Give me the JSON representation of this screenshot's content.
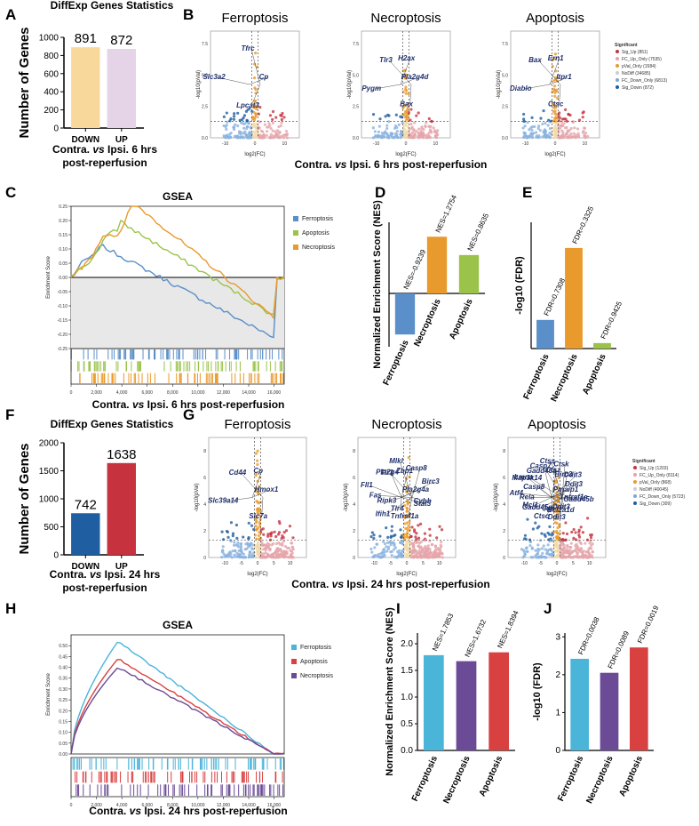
{
  "panels": {
    "A": "A",
    "B": "B",
    "C": "C",
    "D": "D",
    "E": "E",
    "F": "F",
    "G": "G",
    "H": "H",
    "I": "I",
    "J": "J"
  },
  "captions": {
    "a": [
      "Contra. vs Ipsi.  6 hrs",
      "post-reperfusion"
    ],
    "b": "Contra. vs Ipsi. 6 hrs post-reperfusion",
    "c": "Contra. vs Ipsi. 6 hrs post-reperfusion",
    "f": [
      "Contra. vs Ipsi.  24 hrs",
      "post-reperfusion"
    ],
    "g": "Contra. vs Ipsi. 24 hrs post-reperfusion",
    "h": "Contra. vs Ipsi. 24 hrs post-reperfusion"
  },
  "colors": {
    "ferroptosis": "#5b8fc9",
    "apoptosis": "#9bc34a",
    "necroptosis": "#e99a2c",
    "down6": "#f9d89c",
    "up6": "#e5d3e8",
    "down24": "#1f5ea0",
    "up24": "#c7323f",
    "ferro24": "#4ab4d9",
    "necro24": "#6b4a96",
    "apo24": "#d94141",
    "sigdown": "#5b8fc9",
    "sigup": "#d9707a"
  },
  "chart_data": [
    {
      "id": "A",
      "type": "bar",
      "title": "DiffExp Genes Statistics",
      "categories": [
        "DOWN",
        "UP"
      ],
      "values": [
        891,
        872
      ],
      "ylabel": "Number of Genes",
      "ylim": [
        0,
        1000
      ],
      "yticks": [
        "0",
        "200",
        "400",
        "600",
        "800",
        "1000"
      ]
    },
    {
      "id": "B",
      "type": "scatter",
      "subtitles": [
        "Ferroptosis",
        "Necroptosis",
        "Apoptosis"
      ],
      "xlabel": "log2(FC)",
      "ylabel": "-log10(pVal)",
      "yticks": [
        "0.0",
        "2.5",
        "5.0",
        "7.5"
      ],
      "xticks": [
        "-10",
        "0",
        "10"
      ],
      "genes": [
        [
          "Cp",
          "Lpcat3",
          "Slc3a2",
          "Tfrc"
        ],
        [
          "Pla2g4d",
          "Bax",
          "Pygm",
          "Tlr3",
          "H2ax"
        ],
        [
          "Itpr1",
          "Ctsc",
          "Diablo",
          "Bax",
          "Ern1"
        ]
      ],
      "legend_title": "Significant",
      "legend": [
        "Sig_Up (851)",
        "FC_Up_Only (7535)",
        "pVal_Only (1584)",
        "NoDiff (34685)",
        "FC_Down_Only (6813)",
        "Sig_Down (872)"
      ]
    },
    {
      "id": "C",
      "type": "line",
      "title": "GSEA",
      "ylabel": "Enrichment Score",
      "ylim": [
        -0.25,
        0.25
      ],
      "yticks": [
        "0.25",
        "0.20",
        "0.15",
        "0.10",
        "0.05",
        "0.00",
        "-0.05",
        "-0.10",
        "-0.15",
        "-0.20",
        "-0.25"
      ],
      "xticks": [
        "0",
        "2,000",
        "4,000",
        "6,000",
        "8,000",
        "10,000",
        "12,000",
        "14,000",
        "16,000"
      ],
      "series": [
        {
          "name": "Ferroptosis",
          "peak": 0.12
        },
        {
          "name": "Apoptosis",
          "peak": 0.2
        },
        {
          "name": "Necroptosis",
          "peak": 0.27
        }
      ]
    },
    {
      "id": "D",
      "type": "bar",
      "ylabel": "Normalized Enrichment Score (NES)",
      "categories": [
        "Ferroptosis",
        "Necroptosis",
        "Apoptosis"
      ],
      "values": [
        -0.9239,
        1.2754,
        0.8635
      ],
      "labels": [
        "NES=-0.9239",
        "NES=1.2754",
        "NES=0.8635"
      ]
    },
    {
      "id": "E",
      "type": "bar",
      "ylabel": "-log10 (FDR)",
      "categories": [
        "Ferroptosis",
        "Necroptosis",
        "Apoptosis"
      ],
      "values": [
        0.136,
        0.478,
        0.026
      ],
      "labels": [
        "FDR=0.7308",
        "FDR=0.3325",
        "FDR=0.9425"
      ]
    },
    {
      "id": "F",
      "type": "bar",
      "title": "DiffExp Genes Statistics",
      "categories": [
        "DOWN",
        "UP"
      ],
      "values": [
        742,
        1638
      ],
      "ylabel": "Number of Genes",
      "ylim": [
        0,
        2000
      ],
      "yticks": [
        "0",
        "500",
        "1000",
        "1500",
        "2000"
      ]
    },
    {
      "id": "G",
      "type": "scatter",
      "subtitles": [
        "Ferroptosis",
        "Necroptosis",
        "Apoptosis"
      ],
      "xlabel": "log2(FC)",
      "ylabel": "-log10(pVal)",
      "yticks": [
        "0",
        "2",
        "4",
        "6",
        "8"
      ],
      "xticks": [
        "-10",
        "-5",
        "0",
        "5",
        "10"
      ],
      "genes": [
        [
          "Hmox1",
          "Slc7a",
          "Slc39a14",
          "Cd44",
          "Cp"
        ],
        [
          "Pla2g4a",
          "Cybb",
          "Stat3",
          "Tnfrsf1a",
          "Tlr4",
          "Ifih1",
          "Ripk3",
          "Fas",
          "Fll1",
          "Tlr3",
          "Pla2g4",
          "Mlkl",
          "Zbp1",
          "Casp8",
          "Birc3"
        ],
        [
          "Pmaip1",
          "Tnfrsf1a",
          "Gadd45b",
          "Bcl2a1d",
          "Ddit3",
          "Ddit3",
          "Jun",
          "Ctsc",
          "Mcl1",
          "Gadd45g",
          "Rela",
          "Atf4",
          "Casp8",
          "Map3k14",
          "Lmna",
          "Casp7",
          "Gadd45a",
          "Ctss",
          "Ctsz",
          "Ctsk",
          "Ddit3",
          "Birc3",
          "Ddit3"
        ]
      ],
      "legend_title": "Significant",
      "legend": [
        "Sig_Up (1203)",
        "FC_Up_Only (8114)",
        "pVal_Only (868)",
        "NoDiff (40045)",
        "FC_Down_Only (5723)",
        "Sig_Down (309)"
      ]
    },
    {
      "id": "H",
      "type": "line",
      "title": "GSEA",
      "ylabel": "Enrichment Score",
      "ylim": [
        0,
        0.55
      ],
      "yticks": [
        "0.50",
        "0.45",
        "0.40",
        "0.35",
        "0.30",
        "0.25",
        "0.20",
        "0.15",
        "0.10",
        "0.05",
        "0.00"
      ],
      "xticks": [
        "0",
        "2,000",
        "4,000",
        "6,000",
        "8,000",
        "10,000",
        "12,000",
        "14,000",
        "16,000"
      ],
      "series": [
        {
          "name": "Ferroptosis",
          "peak": 0.52
        },
        {
          "name": "Apoptosis",
          "peak": 0.44
        },
        {
          "name": "Necroptosis",
          "peak": 0.4
        }
      ]
    },
    {
      "id": "I",
      "type": "bar",
      "ylabel": "Normalized Enrichment Score (NES)",
      "categories": [
        "Ferroptosis",
        "Necroptosis",
        "Apoptosis"
      ],
      "values": [
        1.7853,
        1.6732,
        1.8394
      ],
      "labels": [
        "NES=1.7853",
        "NES=1.6732",
        "NES=1.8394"
      ],
      "ylim": [
        0,
        2
      ],
      "yticks": [
        "0.0",
        "0.5",
        "1.0",
        "1.5",
        "2.0"
      ]
    },
    {
      "id": "J",
      "type": "bar",
      "ylabel": "-log10 (FDR)",
      "categories": [
        "Ferroptosis",
        "Necroptosis",
        "Apoptosis"
      ],
      "values": [
        2.42,
        2.05,
        2.72
      ],
      "labels": [
        "FDR=0.0038",
        "FDR=0.0089",
        "FDR=0.0019"
      ],
      "ylim": [
        0,
        3
      ],
      "yticks": [
        "0",
        "1",
        "2",
        "3"
      ]
    }
  ]
}
